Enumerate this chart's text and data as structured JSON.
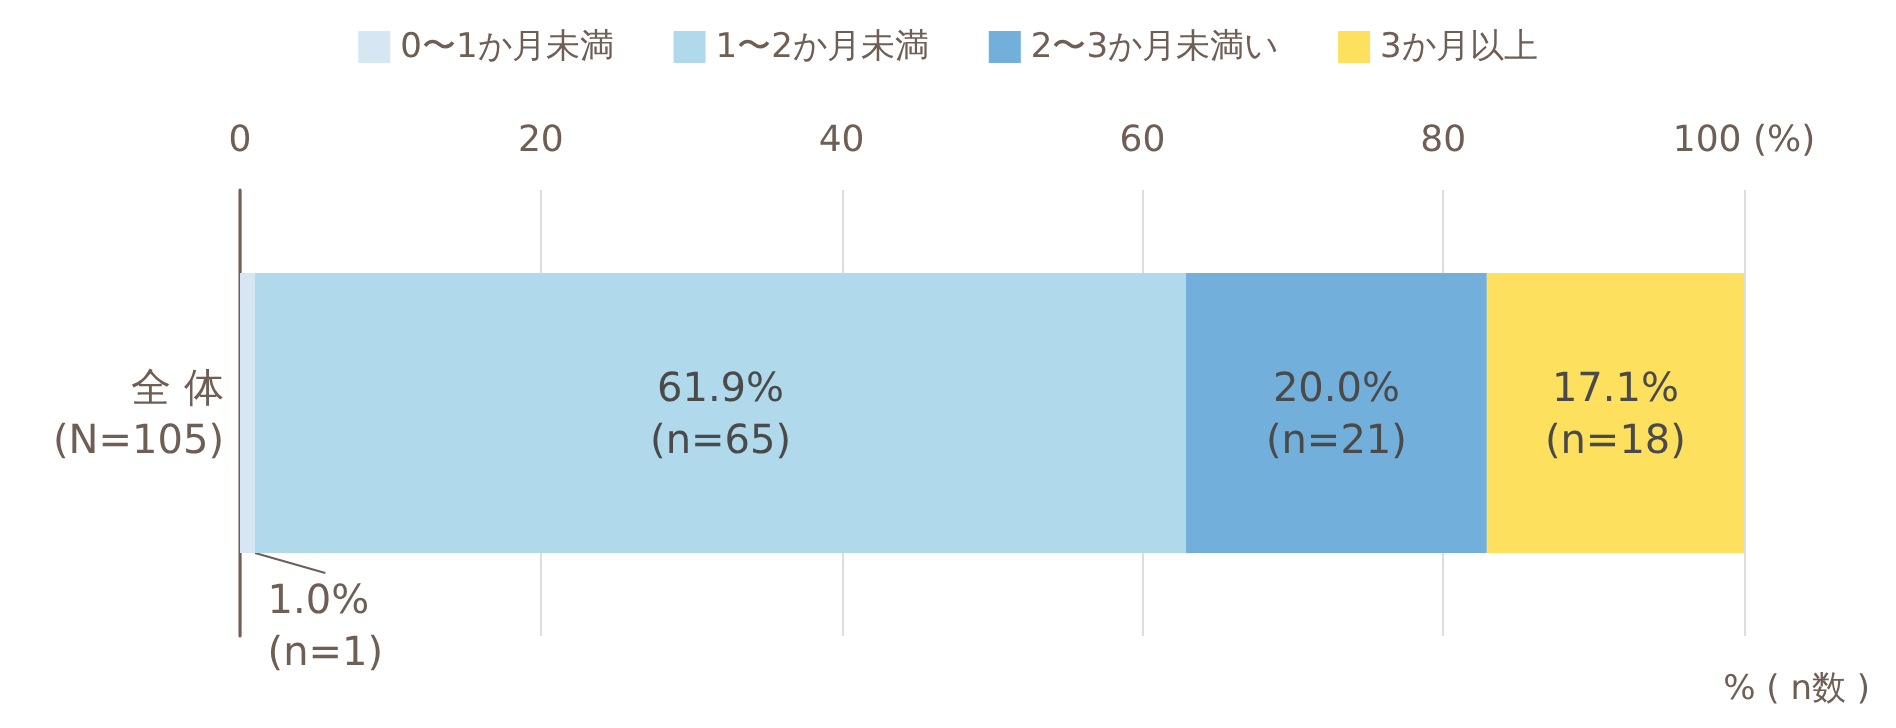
{
  "chart_data": {
    "type": "bar",
    "orientation": "horizontal",
    "stacked": true,
    "categories": [
      "全 体\n(N=105)"
    ],
    "series": [
      {
        "name": "0〜1か月未満",
        "color": "#d6e6f2",
        "values": [
          1.0
        ],
        "value_labels": [
          "1.0%\n(n=1)"
        ]
      },
      {
        "name": "1〜2か月未満",
        "color": "#b0d9ec",
        "values": [
          61.9
        ],
        "value_labels": [
          "61.9%\n(n=65)"
        ]
      },
      {
        "name": "2〜3か月未満い",
        "color": "#72b0db",
        "values": [
          20.0
        ],
        "value_labels": [
          "20.0%\n(n=21)"
        ]
      },
      {
        "name": "3か月以上",
        "color": "#fde05e",
        "values": [
          17.1
        ],
        "value_labels": [
          "17.1%\n(n=18)"
        ]
      }
    ],
    "xlim": [
      0,
      100
    ],
    "xticks": [
      0,
      20,
      40,
      60,
      80,
      {
        "value": 100,
        "label": "100 (%)"
      }
    ],
    "xlabel": "% ( n数 )",
    "grid": "x",
    "legend": "top"
  }
}
